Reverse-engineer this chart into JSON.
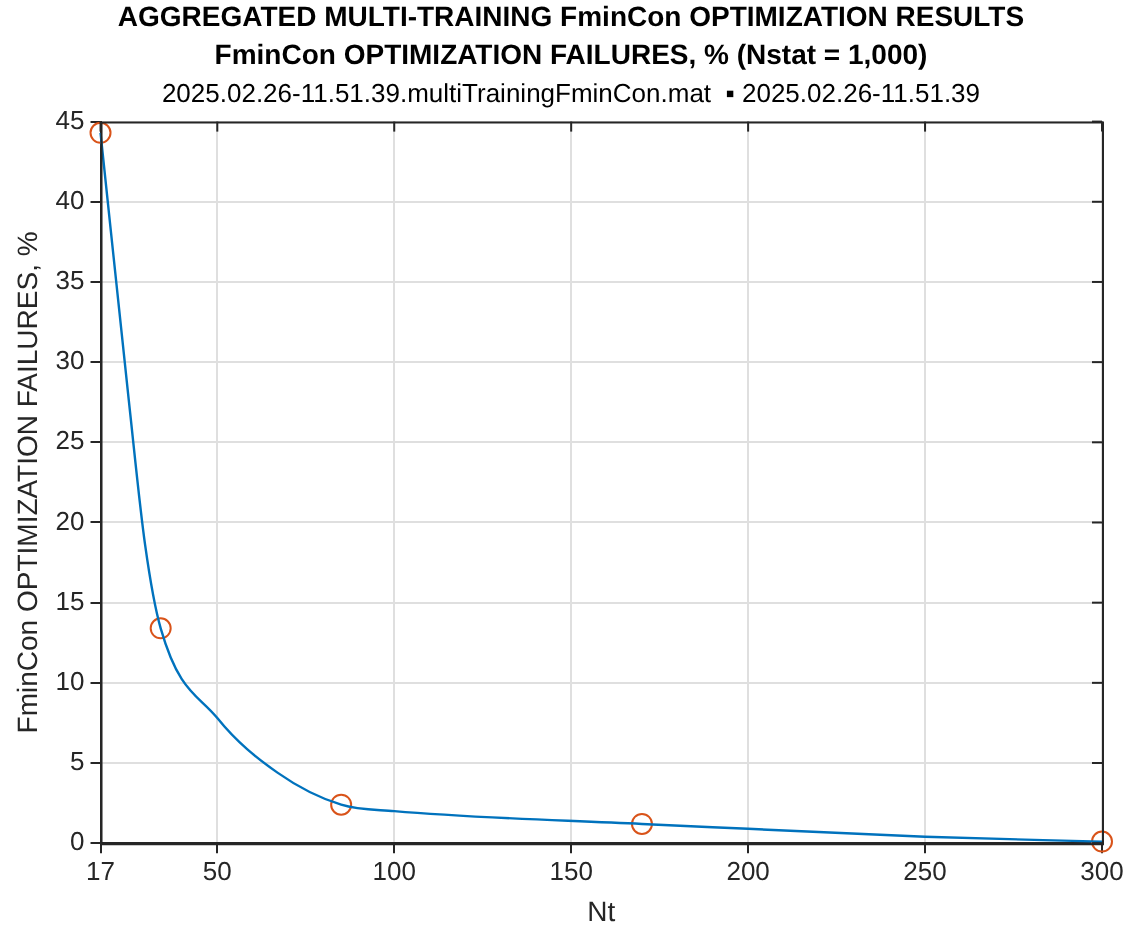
{
  "chart_data": {
    "type": "line",
    "title": "AGGREGATED MULTI-TRAINING FminCon OPTIMIZATION RESULTS",
    "subtitle": "FminCon OPTIMIZATION FAILURES, % (Nstat = 1,000)",
    "annotations": [
      "2025.02.26-11.51.39.multiTrainingFminCon.mat  ▪ 2025.02.26-11.51.39"
    ],
    "xlabel": "Nt",
    "ylabel": "FminCon OPTIMIZATION FAILURES, %",
    "series": [
      {
        "type": "line",
        "color": "#0072bd",
        "marker": "none",
        "x": [
          17,
          25,
          29.6,
          34,
          50,
          67,
          85,
          100,
          170,
          200,
          250,
          300
        ],
        "values": [
          44.3,
          27.6,
          18.6,
          13.4,
          7.8,
          4.4,
          2.4,
          2.0,
          1.2,
          0.9,
          0.4,
          0.1
        ]
      },
      {
        "type": "scatter",
        "color": "#d95319",
        "marker": "circle",
        "x": [
          17,
          34,
          85,
          170,
          300
        ],
        "values": [
          44.3,
          13.4,
          2.4,
          1.2,
          0.1
        ]
      }
    ],
    "xlim": [
      17,
      300
    ],
    "xticks": [
      17,
      50,
      100,
      150,
      200,
      250,
      300
    ],
    "ylim": [
      0,
      45
    ],
    "yticks": [
      0,
      5,
      10,
      15,
      20,
      25,
      30,
      35,
      40,
      45
    ],
    "grid": true
  }
}
